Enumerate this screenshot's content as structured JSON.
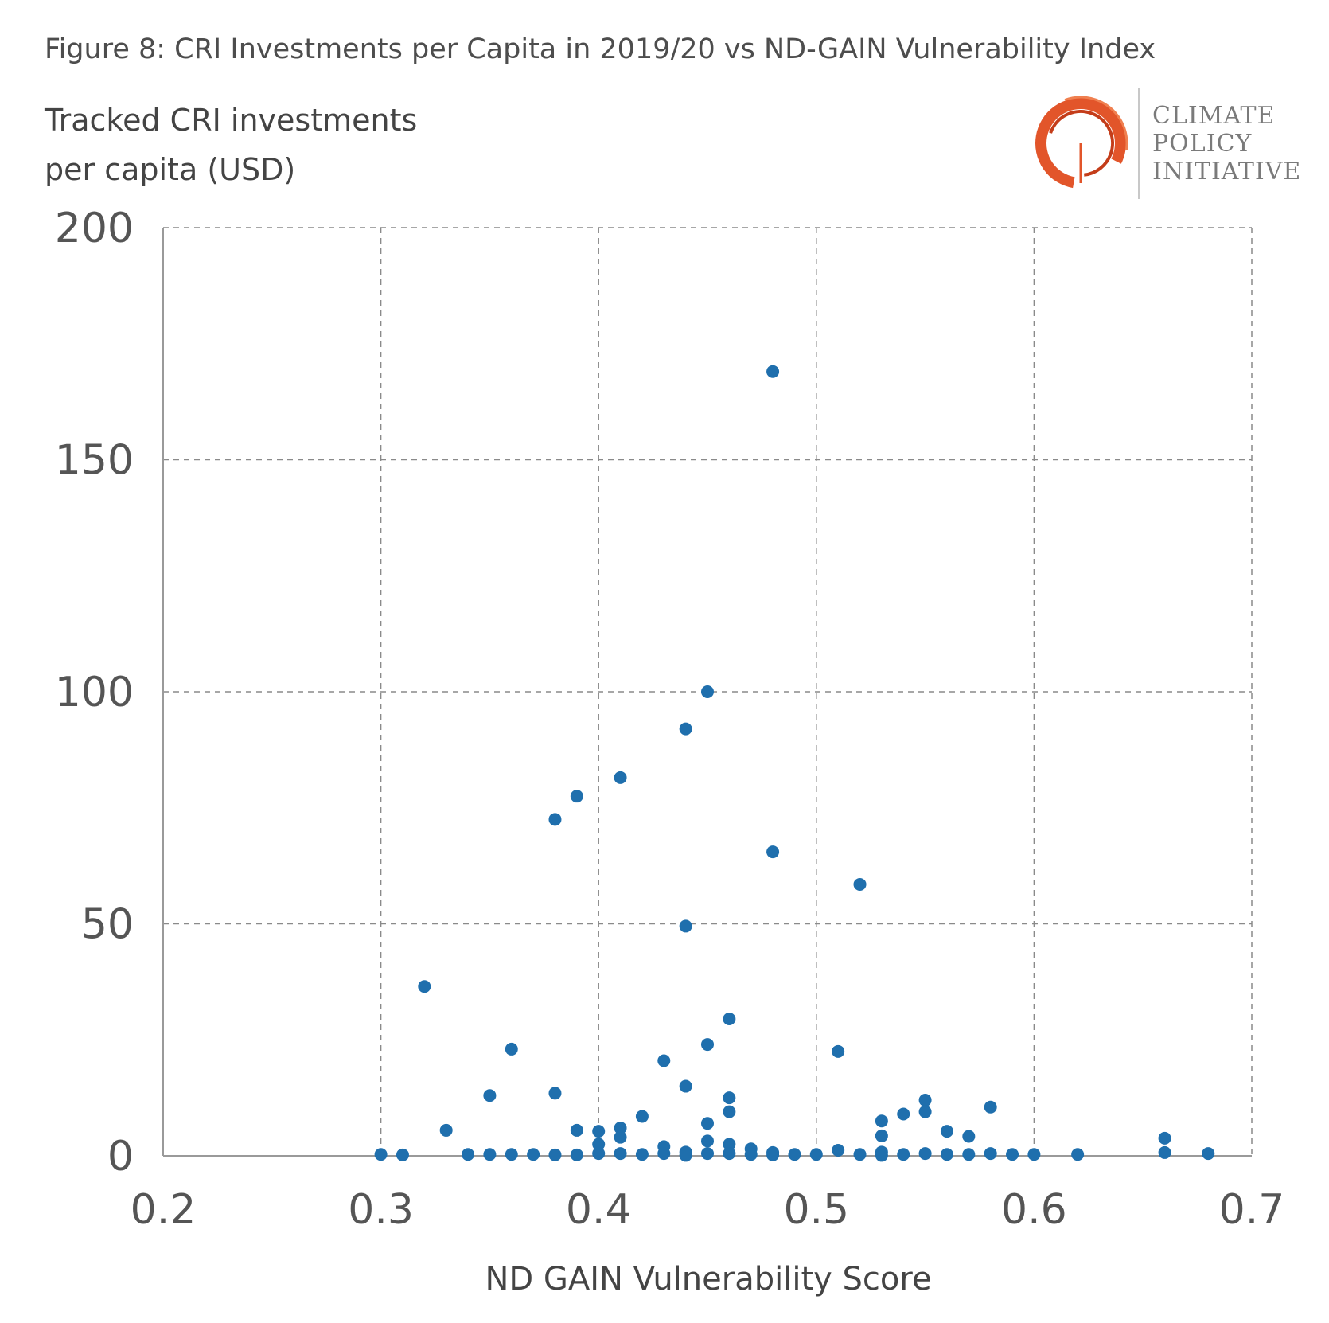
{
  "figure_title": "Figure 8: CRI Investments per Capita in 2019/20 vs ND-GAIN Vulnerability Index",
  "y_axis_title_line1": "Tracked CRI investments",
  "y_axis_title_line2": "per capita (USD)",
  "logo": {
    "line1": "CLIMATE",
    "line2": "POLICY",
    "line3": "INITIATIVE",
    "ring_color": "#e2552a"
  },
  "chart_data": {
    "type": "scatter",
    "title": "Figure 8: CRI Investments per Capita in 2019/20 vs ND-GAIN Vulnerability Index",
    "xlabel": "ND GAIN Vulnerability Score",
    "ylabel": "Tracked CRI investments per capita (USD)",
    "xlim": [
      0.2,
      0.7
    ],
    "ylim": [
      0,
      200
    ],
    "xticks": [
      "0.2",
      "0.3",
      "0.4",
      "0.5",
      "0.6",
      "0.7"
    ],
    "yticks": [
      "0",
      "50",
      "100",
      "150",
      "200"
    ],
    "grid": true,
    "color": "#1f6fad",
    "points": [
      [
        0.3,
        0.3
      ],
      [
        0.31,
        0.2
      ],
      [
        0.32,
        36.5
      ],
      [
        0.33,
        5.5
      ],
      [
        0.34,
        0.3
      ],
      [
        0.35,
        13
      ],
      [
        0.35,
        0.3
      ],
      [
        0.36,
        23
      ],
      [
        0.36,
        0.3
      ],
      [
        0.37,
        0.3
      ],
      [
        0.38,
        72.5
      ],
      [
        0.38,
        13.5
      ],
      [
        0.38,
        0.2
      ],
      [
        0.39,
        77.5
      ],
      [
        0.39,
        5.5
      ],
      [
        0.39,
        0.2
      ],
      [
        0.4,
        5.3
      ],
      [
        0.4,
        2.5
      ],
      [
        0.4,
        0.5
      ],
      [
        0.41,
        81.5
      ],
      [
        0.41,
        6
      ],
      [
        0.41,
        4
      ],
      [
        0.41,
        0.5
      ],
      [
        0.42,
        8.5
      ],
      [
        0.42,
        0.3
      ],
      [
        0.43,
        20.5
      ],
      [
        0.43,
        2
      ],
      [
        0.43,
        0.5
      ],
      [
        0.44,
        92
      ],
      [
        0.44,
        49.5
      ],
      [
        0.44,
        15
      ],
      [
        0.44,
        0.8
      ],
      [
        0.44,
        0.1
      ],
      [
        0.45,
        100
      ],
      [
        0.45,
        24
      ],
      [
        0.45,
        7
      ],
      [
        0.45,
        3.2
      ],
      [
        0.45,
        0.5
      ],
      [
        0.46,
        29.5
      ],
      [
        0.46,
        12.5
      ],
      [
        0.46,
        9.5
      ],
      [
        0.46,
        2.5
      ],
      [
        0.46,
        0.5
      ],
      [
        0.47,
        1.5
      ],
      [
        0.47,
        0.3
      ],
      [
        0.48,
        169
      ],
      [
        0.48,
        65.5
      ],
      [
        0.48,
        0.7
      ],
      [
        0.48,
        0.2
      ],
      [
        0.49,
        0.3
      ],
      [
        0.5,
        0.3
      ],
      [
        0.51,
        22.5
      ],
      [
        0.51,
        1.2
      ],
      [
        0.52,
        58.5
      ],
      [
        0.52,
        0.3
      ],
      [
        0.53,
        7.5
      ],
      [
        0.53,
        4.3
      ],
      [
        0.53,
        0.8
      ],
      [
        0.53,
        0.1
      ],
      [
        0.54,
        9
      ],
      [
        0.54,
        0.3
      ],
      [
        0.55,
        12
      ],
      [
        0.55,
        9.5
      ],
      [
        0.55,
        0.5
      ],
      [
        0.56,
        5.3
      ],
      [
        0.56,
        0.3
      ],
      [
        0.57,
        4.2
      ],
      [
        0.57,
        0.3
      ],
      [
        0.58,
        10.5
      ],
      [
        0.58,
        0.5
      ],
      [
        0.59,
        0.3
      ],
      [
        0.6,
        0.3
      ],
      [
        0.62,
        0.3
      ],
      [
        0.66,
        3.8
      ],
      [
        0.66,
        0.7
      ],
      [
        0.68,
        0.5
      ]
    ]
  }
}
